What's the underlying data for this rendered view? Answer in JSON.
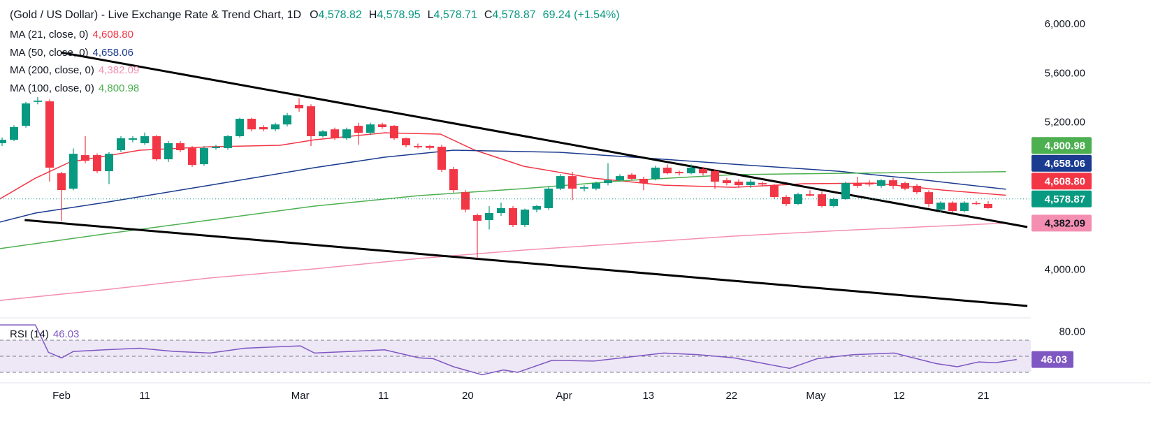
{
  "header": {
    "title": "(Gold / US Dollar) - Live Exchange Rate & Trend Chart, 1D",
    "ohlc": [
      {
        "label": "O",
        "value": "4,578.82"
      },
      {
        "label": "H",
        "value": "4,578.95"
      },
      {
        "label": "L",
        "value": "4,578.71"
      },
      {
        "label": "C",
        "value": "4,578.87"
      }
    ],
    "change": "69.24 (+1.54%)",
    "color": "#089981"
  },
  "chart_data": [
    {
      "type": "candlestick",
      "up_color": "#089981",
      "down_color": "#f23645",
      "ohlc": [
        [
          5033,
          5080,
          5010,
          5061
        ],
        [
          5061,
          5180,
          5050,
          5164
        ],
        [
          5175,
          5370,
          5160,
          5357
        ],
        [
          5370,
          5410,
          5350,
          5380
        ],
        [
          5374,
          5390,
          4720,
          4834
        ],
        [
          4788,
          4800,
          4400,
          4651
        ],
        [
          4663,
          4990,
          4650,
          4947
        ],
        [
          4936,
          5090,
          4870,
          4890
        ],
        [
          4936,
          4950,
          4790,
          4805
        ],
        [
          4805,
          4960,
          4700,
          4947
        ],
        [
          4976,
          5090,
          4960,
          5073
        ],
        [
          5061,
          5090,
          5040,
          5073
        ],
        [
          5033,
          5120,
          5020,
          5090
        ],
        [
          5090,
          5100,
          4890,
          4902
        ],
        [
          4902,
          5050,
          4880,
          5033
        ],
        [
          5033,
          5050,
          4960,
          4976
        ],
        [
          4993,
          5010,
          4840,
          4856
        ],
        [
          4862,
          5010,
          4850,
          4993
        ],
        [
          4993,
          5020,
          4980,
          5004
        ],
        [
          4993,
          5100,
          4980,
          5090
        ],
        [
          5090,
          5240,
          5080,
          5232
        ],
        [
          5232,
          5240,
          5130,
          5146
        ],
        [
          5164,
          5180,
          5130,
          5146
        ],
        [
          5146,
          5200,
          5130,
          5186
        ],
        [
          5186,
          5280,
          5170,
          5260
        ],
        [
          5346,
          5400,
          5290,
          5317
        ],
        [
          5334,
          5350,
          5010,
          5090
        ],
        [
          5090,
          5140,
          5080,
          5129
        ],
        [
          5146,
          5160,
          5060,
          5073
        ],
        [
          5073,
          5160,
          5060,
          5146
        ],
        [
          5175,
          5200,
          5020,
          5118
        ],
        [
          5118,
          5200,
          5100,
          5186
        ],
        [
          5186,
          5200,
          5150,
          5164
        ],
        [
          5175,
          5180,
          5060,
          5073
        ],
        [
          5073,
          5080,
          5000,
          5016
        ],
        [
          5010,
          5030,
          4990,
          5000
        ],
        [
          5010,
          5020,
          4980,
          4995
        ],
        [
          5004,
          5020,
          4800,
          4817
        ],
        [
          4822,
          4840,
          4630,
          4651
        ],
        [
          4634,
          4650,
          4470,
          4492
        ],
        [
          4447,
          4460,
          4094,
          4401
        ],
        [
          4407,
          4520,
          4330,
          4464
        ],
        [
          4464,
          4550,
          4440,
          4504
        ],
        [
          4504,
          4520,
          4350,
          4367
        ],
        [
          4367,
          4500,
          4350,
          4492
        ],
        [
          4492,
          4530,
          4470,
          4521
        ],
        [
          4504,
          4680,
          4490,
          4663
        ],
        [
          4663,
          4780,
          4650,
          4765
        ],
        [
          4765,
          4800,
          4570,
          4663
        ],
        [
          4663,
          4690,
          4640,
          4674
        ],
        [
          4663,
          4720,
          4650,
          4708
        ],
        [
          4708,
          4870,
          4690,
          4731
        ],
        [
          4731,
          4780,
          4720,
          4765
        ],
        [
          4777,
          4790,
          4730,
          4743
        ],
        [
          4743,
          4760,
          4650,
          4708
        ],
        [
          4743,
          4850,
          4730,
          4834
        ],
        [
          4834,
          4860,
          4780,
          4788
        ],
        [
          4799,
          4810,
          4770,
          4788
        ],
        [
          4788,
          4860,
          4780,
          4834
        ],
        [
          4822,
          4840,
          4770,
          4788
        ],
        [
          4805,
          4820,
          4660,
          4720
        ],
        [
          4731,
          4750,
          4690,
          4708
        ],
        [
          4720,
          4740,
          4670,
          4691
        ],
        [
          4691,
          4740,
          4670,
          4720
        ],
        [
          4708,
          4720,
          4680,
          4697
        ],
        [
          4691,
          4700,
          4580,
          4595
        ],
        [
          4595,
          4610,
          4520,
          4538
        ],
        [
          4538,
          4630,
          4530,
          4617
        ],
        [
          4617,
          4650,
          4600,
          4606
        ],
        [
          4617,
          4640,
          4510,
          4521
        ],
        [
          4521,
          4590,
          4510,
          4578
        ],
        [
          4578,
          4720,
          4570,
          4708
        ],
        [
          4708,
          4760,
          4670,
          4686
        ],
        [
          4708,
          4730,
          4680,
          4697
        ],
        [
          4686,
          4740,
          4670,
          4731
        ],
        [
          4731,
          4750,
          4660,
          4686
        ],
        [
          4708,
          4720,
          4650,
          4663
        ],
        [
          4686,
          4700,
          4620,
          4634
        ],
        [
          4634,
          4650,
          4510,
          4538
        ],
        [
          4492,
          4560,
          4470,
          4549
        ],
        [
          4549,
          4560,
          4470,
          4481
        ],
        [
          4481,
          4560,
          4470,
          4549
        ],
        [
          4545,
          4560,
          4530,
          4538
        ],
        [
          4538,
          4560,
          4500,
          4504
        ]
      ],
      "ylim": [
        3610,
        6200
      ],
      "yticks": [
        {
          "value": 4000,
          "label": "4,000.00"
        },
        {
          "value": 5200,
          "label": "5,200.00"
        },
        {
          "value": 5600,
          "label": "5,600.00"
        },
        {
          "value": 6000,
          "label": "6,000.00"
        }
      ],
      "xticks": [
        {
          "value": 5,
          "label": "Feb"
        },
        {
          "value": 12,
          "label": "11"
        },
        {
          "value": 25.1,
          "label": "Mar"
        },
        {
          "value": 32.1,
          "label": "11"
        },
        {
          "value": 39.2,
          "label": "20"
        },
        {
          "value": 47.3,
          "label": "Apr"
        },
        {
          "value": 54.4,
          "label": "13"
        },
        {
          "value": 61.4,
          "label": "22"
        },
        {
          "value": 68.5,
          "label": "May"
        },
        {
          "value": 75.5,
          "label": "12"
        },
        {
          "value": 82.6,
          "label": "21"
        }
      ],
      "lines": [
        {
          "name": "MA (21, close, 0)",
          "color": "#f23645",
          "x": [
            -0.2,
            2.8,
            5.7,
            11.6,
            17.5,
            23.4,
            26.3,
            32.2,
            36.9,
            39.8,
            43.9,
            49.8,
            55.7,
            61.6,
            67.5,
            73.4,
            79.2,
            84.5
          ],
          "values": [
            4578,
            4748,
            4879,
            4976,
            5004,
            5016,
            5061,
            5118,
            5107,
            4976,
            4845,
            4748,
            4691,
            4674,
            4703,
            4708,
            4651,
            4608.8
          ],
          "last": {
            "value": 4608.8,
            "label": "4,608.80"
          }
        },
        {
          "name": "MA (50, close, 0)",
          "color": "#1a3b8f",
          "x": [
            -0.2,
            2.8,
            8.6,
            17.5,
            26.3,
            32.2,
            38,
            46.9,
            55.7,
            61.6,
            70.4,
            76.3,
            84.5
          ],
          "values": [
            4390,
            4464,
            4549,
            4691,
            4834,
            4919,
            4976,
            4959,
            4902,
            4862,
            4805,
            4748,
            4658.06
          ],
          "last": {
            "value": 4658.06,
            "label": "4,658.06"
          }
        },
        {
          "name": "MA (200, close, 0)",
          "color": "#f48fb1",
          "x": [
            -0.2,
            8.6,
            17.5,
            26.3,
            35.1,
            43.9,
            52.8,
            61.6,
            70.4,
            84.5
          ],
          "values": [
            3752,
            3838,
            3935,
            4009,
            4094,
            4162,
            4219,
            4276,
            4321,
            4382.09
          ],
          "last": {
            "value": 4382.09,
            "label": "4,382.09"
          }
        },
        {
          "name": "MA (100, close, 0)",
          "color": "#4caf50",
          "x": [
            -0.2,
            8.6,
            17.5,
            26.3,
            35.1,
            43.9,
            52.8,
            61.6,
            70.4,
            84.5
          ],
          "values": [
            4174,
            4293,
            4407,
            4521,
            4606,
            4663,
            4731,
            4777,
            4788,
            4800.98
          ],
          "last": {
            "value": 4800.98,
            "label": "4,800.98"
          }
        }
      ],
      "trendlines": [
        {
          "color": "#000000",
          "x": [
            5,
            86.3
          ],
          "values": [
            5772,
            4350
          ]
        },
        {
          "color": "#000000",
          "x": [
            1.9,
            86.3
          ],
          "values": [
            4407,
            3707
          ]
        }
      ],
      "last_price": {
        "value": 4578.87,
        "label": "4,578.87",
        "color": "#089981"
      }
    },
    {
      "type": "line",
      "name": "RSI (14)",
      "color": "#7e57c2",
      "x": [
        -0.2,
        2.8,
        3.9,
        5,
        6,
        8.6,
        11.6,
        14.5,
        17.5,
        20.4,
        25.1,
        26.3,
        32.2,
        35.1,
        36.3,
        38,
        40.4,
        42.2,
        43.4,
        46.3,
        49.8,
        55.7,
        58.6,
        61.6,
        66.3,
        68.6,
        71.6,
        75.1,
        78.6,
        80.4,
        82.2,
        83.6,
        85.4
      ],
      "values": [
        89,
        89,
        55,
        48,
        56,
        58,
        60,
        56,
        54,
        60,
        63,
        54,
        58,
        48,
        47,
        37,
        27,
        33,
        30,
        45,
        44,
        54,
        52,
        48,
        35,
        47,
        52,
        54,
        41,
        37,
        43,
        42,
        46.03
      ],
      "last": {
        "value": 46.03,
        "label": "46.03"
      },
      "ylim": [
        19.6,
        95.2
      ],
      "yticks": [
        {
          "value": 80,
          "label": "80.00"
        }
      ],
      "bands": [
        30,
        70
      ],
      "midline": 50,
      "band_color": "#ede7f6"
    }
  ]
}
